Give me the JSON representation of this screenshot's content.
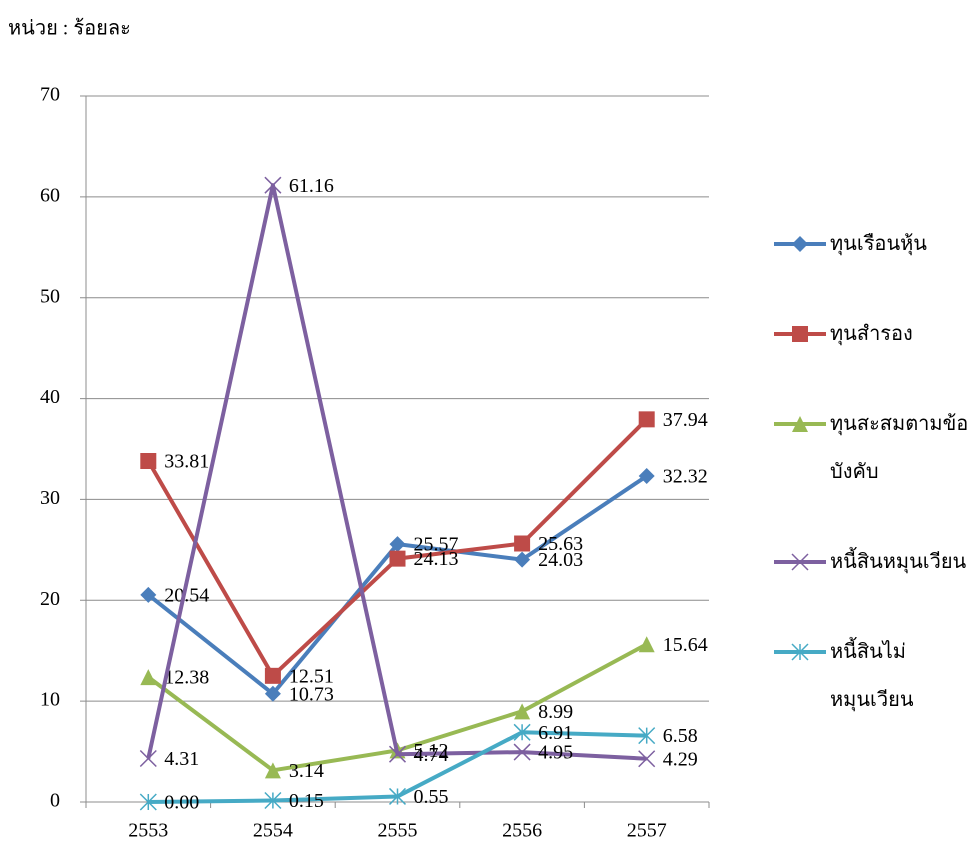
{
  "chart_data": {
    "type": "line",
    "ylabel": "หน่วย : ร้อยละ",
    "categories": [
      "2553",
      "2554",
      "2555",
      "2556",
      "2557"
    ],
    "ylim": [
      0,
      70
    ],
    "yticks": [
      0,
      10,
      20,
      30,
      40,
      50,
      60,
      70
    ],
    "grid": true,
    "legend": "right",
    "series": [
      {
        "name": "ทุนเรือนหุ้น",
        "color": "#4a7ebb",
        "marker": "diamond",
        "values": [
          20.54,
          10.73,
          25.57,
          24.03,
          32.32
        ]
      },
      {
        "name": "ทุนสำรอง",
        "color": "#be4b48",
        "marker": "square",
        "values": [
          33.81,
          12.51,
          24.13,
          25.63,
          37.94
        ]
      },
      {
        "name": "ทุนสะสมตามข้อบังคับ",
        "color": "#98b954",
        "marker": "triangle",
        "values": [
          12.38,
          3.14,
          5.12,
          8.99,
          15.64
        ]
      },
      {
        "name": "หนี้สินหมุนเวียน",
        "color": "#7d60a0",
        "marker": "x",
        "values": [
          4.31,
          61.16,
          4.74,
          4.95,
          4.29
        ]
      },
      {
        "name": "หนี้สินไม่หมุนเวียน",
        "color": "#46aac5",
        "marker": "star",
        "values": [
          0,
          0.15,
          0.55,
          6.91,
          6.58
        ],
        "value_labels": [
          "0.00",
          "0.15",
          "0.55",
          "6.91",
          "6.58"
        ]
      }
    ]
  }
}
